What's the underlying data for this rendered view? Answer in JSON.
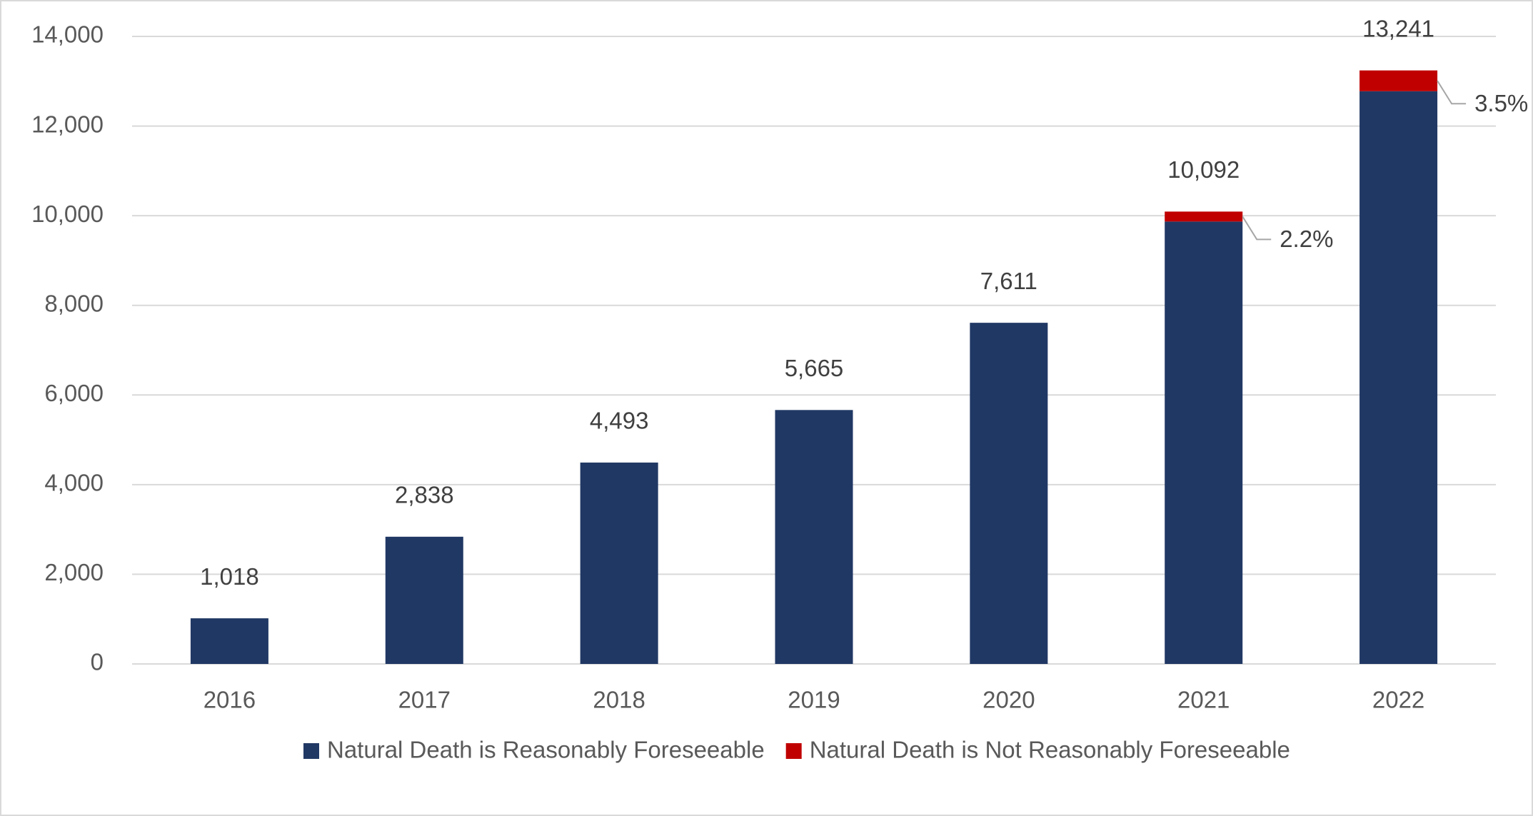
{
  "chart_data": {
    "type": "stacked-bar",
    "categories": [
      "2016",
      "2017",
      "2018",
      "2019",
      "2020",
      "2021",
      "2022"
    ],
    "series": [
      {
        "name": "Natural Death is Reasonably Foreseeable",
        "color": "#203864",
        "values": [
          1018,
          2838,
          4493,
          5665,
          7611,
          9870,
          12778
        ]
      },
      {
        "name": "Natural Death is Not Reasonably Foreseeable",
        "color": "#c00000",
        "values": [
          null,
          null,
          null,
          null,
          null,
          222,
          463
        ]
      }
    ],
    "totals": {
      "values": [
        1018,
        2838,
        4493,
        5665,
        7611,
        10092,
        13241
      ],
      "value_labels": [
        "1,018",
        "2,838",
        "4,493",
        "5,665",
        "7,611",
        "10,092",
        "13,241"
      ]
    },
    "annotations": [
      {
        "category": "2021",
        "text": "2.2%"
      },
      {
        "category": "2022",
        "text": "3.5%"
      }
    ],
    "ylim": [
      0,
      14000
    ],
    "yticks": [
      0,
      {
        "value": 2000,
        "label": "2,000"
      },
      {
        "value": 4000,
        "label": "4,000"
      },
      {
        "value": 6000,
        "label": "6,000"
      },
      {
        "value": 8000,
        "label": "8,000"
      },
      {
        "value": 10000,
        "label": "10,000"
      },
      {
        "value": 12000,
        "label": "12,000"
      },
      {
        "value": 14000,
        "label": "14,000"
      }
    ],
    "grid": true,
    "legend": "bottom"
  }
}
